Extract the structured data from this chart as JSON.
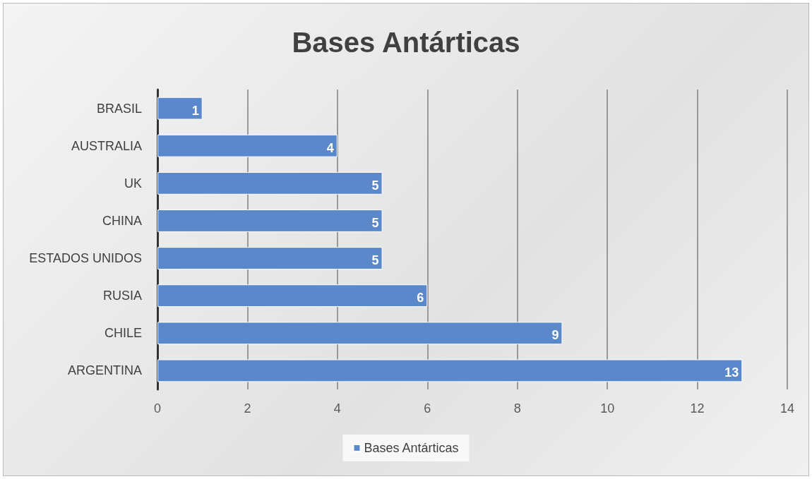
{
  "chart_data": {
    "type": "bar",
    "orientation": "horizontal",
    "title": "Bases Antárticas",
    "categories": [
      "BRASIL",
      "AUSTRALIA",
      "UK",
      "CHINA",
      "ESTADOS UNIDOS",
      "RUSIA",
      "CHILE",
      "ARGENTINA"
    ],
    "series": [
      {
        "name": "Bases Antárticas",
        "color": "#5b87cb",
        "values": [
          1,
          4,
          5,
          5,
          5,
          6,
          9,
          13
        ]
      }
    ],
    "xlim": [
      0,
      14
    ],
    "xticks": [
      0,
      2,
      4,
      6,
      8,
      10,
      12,
      14
    ],
    "grid": "x",
    "legend": "bottom",
    "data_labels": true
  }
}
